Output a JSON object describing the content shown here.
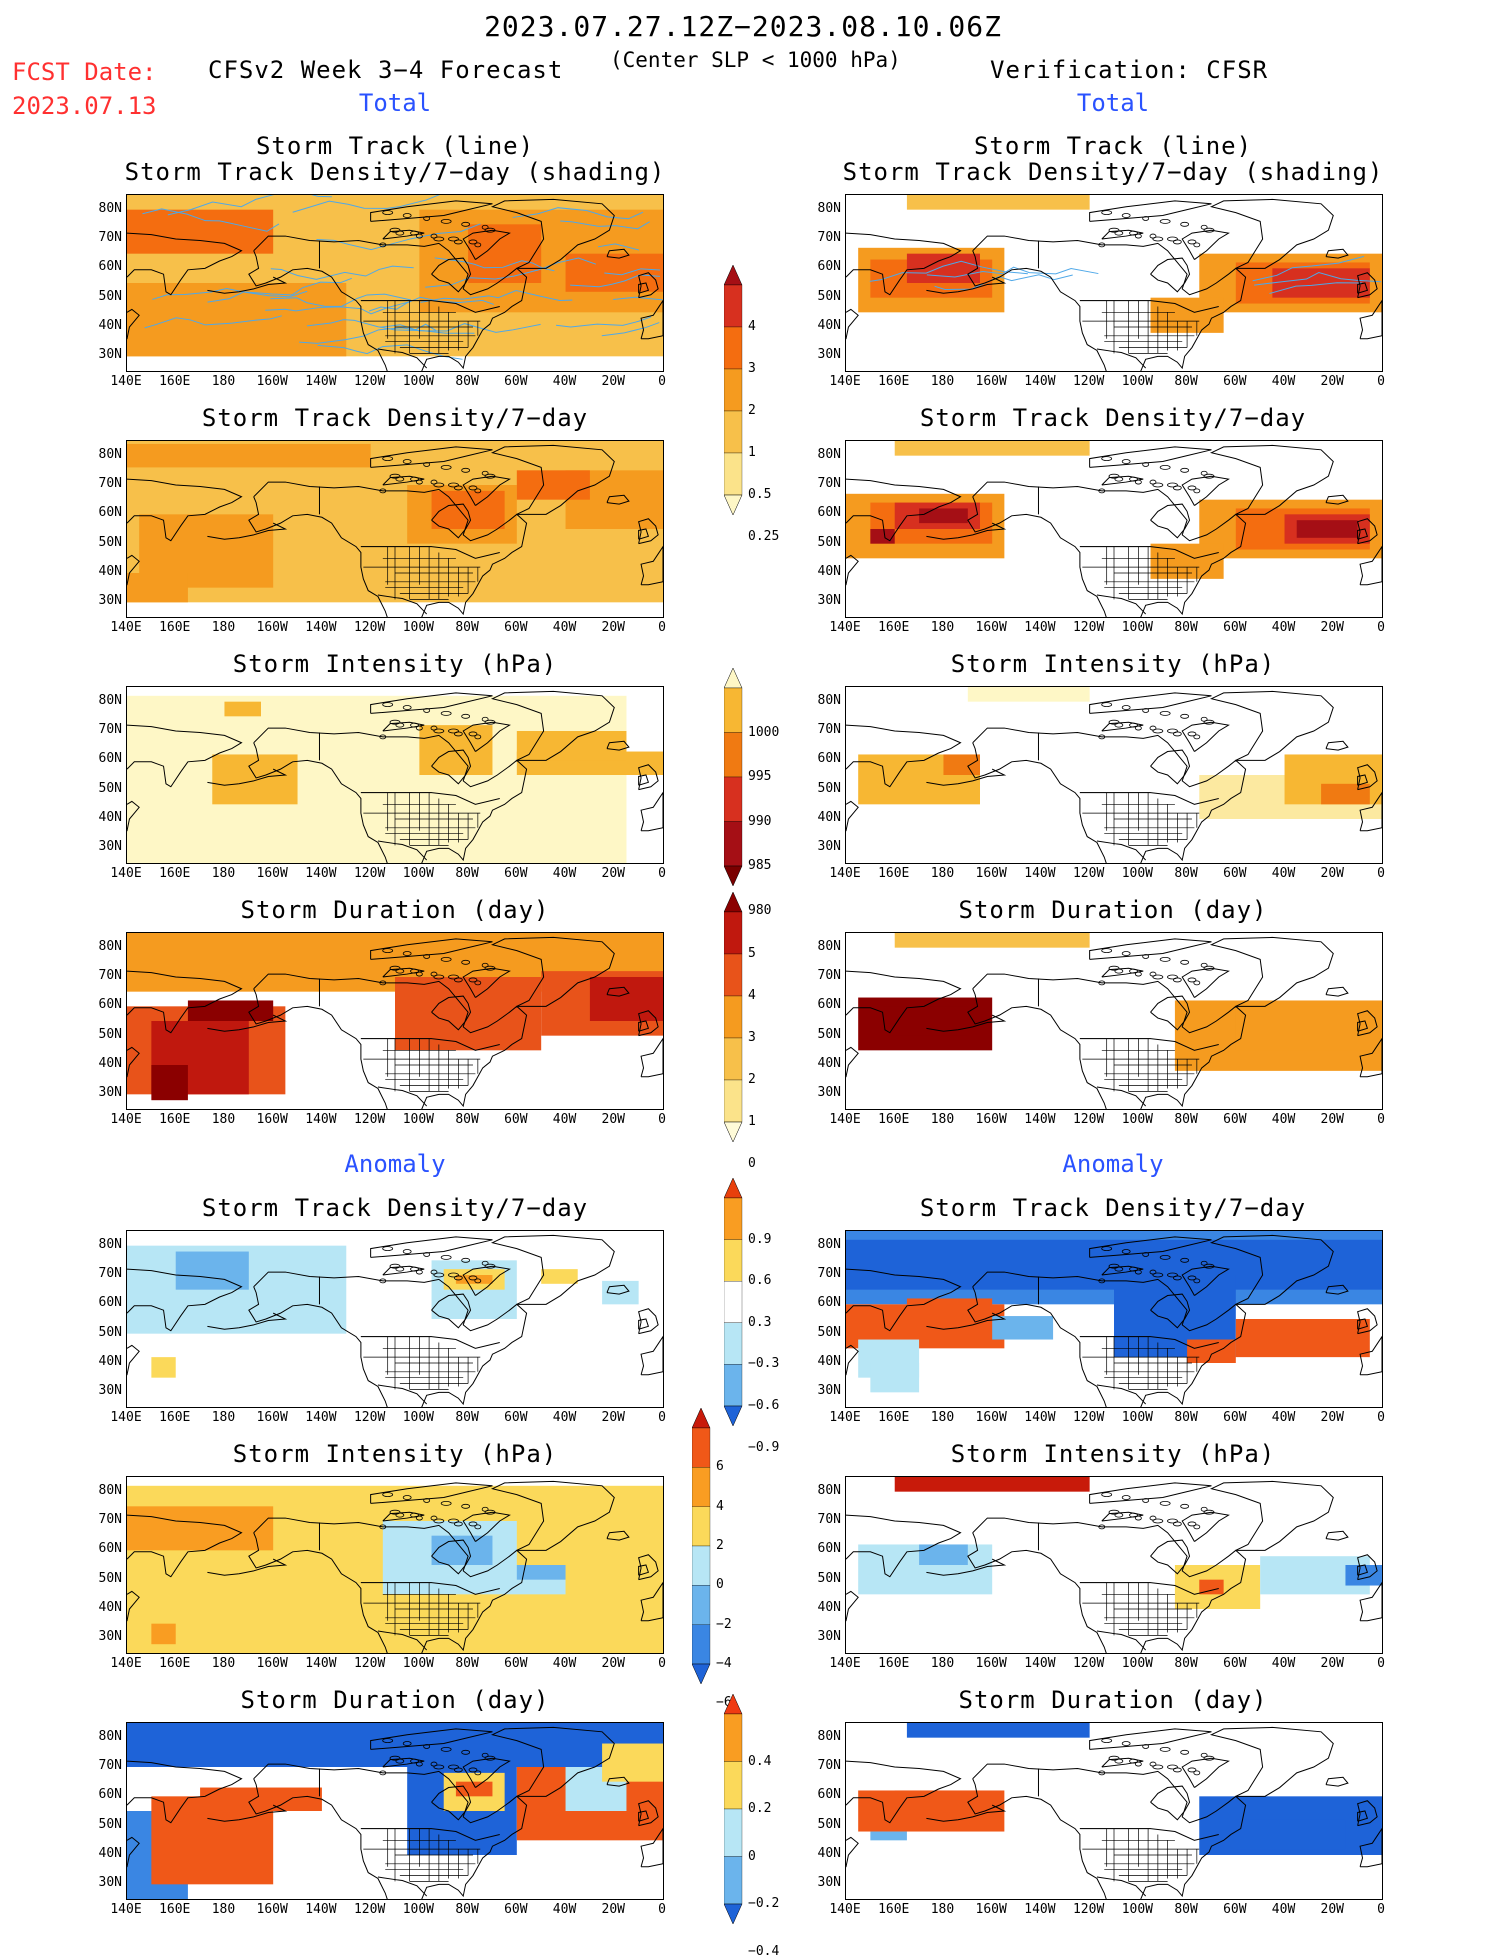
{
  "header": {
    "main_title": "2023.07.27.12Z−2023.08.10.06Z",
    "fcst_label": "FCST Date:",
    "fcst_value": "2023.07.13",
    "model_label": "CFSv2 Week 3−4 Forecast",
    "slp_note": "(Center SLP < 1000 hPa)",
    "verification_label": "Verification: CFSR"
  },
  "sections": {
    "total_left": "Total",
    "total_right": "Total",
    "anomaly_left": "Anomaly",
    "anomaly_right": "Anomaly"
  },
  "panel_titles": {
    "track_line": "Storm Track (line)",
    "track_shading": "Storm Track Density/7−day (shading)",
    "density": "Storm Track Density/7−day",
    "intensity": "Storm Intensity (hPa)",
    "duration": "Storm Duration (day)"
  },
  "axes": {
    "lat_labels": [
      "80N",
      "70N",
      "60N",
      "50N",
      "40N",
      "30N"
    ],
    "lon_labels": [
      "140E",
      "160E",
      "180",
      "160W",
      "140W",
      "120W",
      "100W",
      "80W",
      "60W",
      "40W",
      "20W",
      "0"
    ]
  },
  "colorbars": {
    "density": {
      "labels": [
        "4",
        "3",
        "2",
        "1",
        "0.5",
        "0.25"
      ],
      "colors": [
        "#a50f15",
        "#d7301f",
        "#f46d10",
        "#f59b1f",
        "#f7c04a",
        "#fbe38a",
        "#fef7c6"
      ]
    },
    "intensity": {
      "labels": [
        "1000",
        "995",
        "990",
        "985",
        "980"
      ],
      "colors": [
        "#fef7c6",
        "#f7b733",
        "#f07a12",
        "#d7301f",
        "#a50f15",
        "#7a0000"
      ]
    },
    "duration": {
      "labels": [
        "5",
        "4",
        "3",
        "2",
        "1",
        "0"
      ],
      "colors": [
        "#8b0000",
        "#c0180e",
        "#e8531a",
        "#f59b1f",
        "#f7c04a",
        "#fbe38a",
        "#fffbd8"
      ]
    },
    "density_anomaly": {
      "labels": [
        "0.9",
        "0.6",
        "0.3",
        "−0.3",
        "−0.6",
        "−0.9"
      ],
      "colors": [
        "#e8400c",
        "#f99d22",
        "#fbd95a",
        "#ffffff",
        "#b7e6f5",
        "#6bb4ec",
        "#1e63d8"
      ]
    },
    "intensity_anomaly": {
      "labels": [
        "6",
        "4",
        "2",
        "0",
        "−2",
        "−4",
        "−6"
      ],
      "colors": [
        "#c81a0a",
        "#f05818",
        "#f99d22",
        "#fbd95a",
        "#b7e6f5",
        "#6bb4ec",
        "#3a86e3",
        "#1e63d8"
      ]
    },
    "duration_anomaly": {
      "labels": [
        "0.4",
        "0.2",
        "0",
        "−0.2",
        "−0.4"
      ],
      "colors": [
        "#f03b12",
        "#f99d22",
        "#fbd95a",
        "#b7e6f5",
        "#6bb4ec",
        "#1e63d8"
      ]
    }
  },
  "colors": {
    "fcst_red": "#ff3030",
    "section_blue": "#2a52ff",
    "track_line_blue": "#4fa8e8"
  }
}
